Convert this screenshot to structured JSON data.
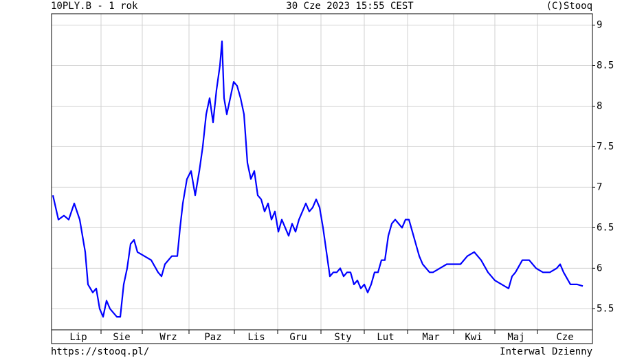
{
  "chart_data": {
    "type": "line",
    "title": "10PLY.B - 1 rok",
    "subtitle": "30 Cze 2023 15:55 CEST",
    "source": "(C)Stooq",
    "footer_left": "https://stooq.pl/",
    "footer_right": "Interwal Dzienny",
    "grid": true,
    "xlim": [
      -2,
      785
    ],
    "ylim": [
      5.24,
      9.14
    ],
    "yticks": [
      5.5,
      6.0,
      6.5,
      7.0,
      7.5,
      8.0,
      8.5,
      9.0
    ],
    "xgrid": [
      70,
      130,
      198,
      264,
      327,
      390,
      453,
      516,
      583,
      643,
      705
    ],
    "xticks": [
      {
        "value": 37,
        "label": "Lip"
      },
      {
        "value": 100,
        "label": "Sie"
      },
      {
        "value": 168,
        "label": "Wrz"
      },
      {
        "value": 233,
        "label": "Paz"
      },
      {
        "value": 296,
        "label": "Lis"
      },
      {
        "value": 357,
        "label": "Gru"
      },
      {
        "value": 422,
        "label": "Sty"
      },
      {
        "value": 484,
        "label": "Lut"
      },
      {
        "value": 550,
        "label": "Mar"
      },
      {
        "value": 612,
        "label": "Kwi"
      },
      {
        "value": 674,
        "label": "Maj"
      },
      {
        "value": 745,
        "label": "Cze"
      }
    ],
    "series": [
      {
        "name": "10PLY.B",
        "color": "#0000ff",
        "x": [
          0,
          8,
          16,
          23,
          31,
          39,
          47,
          51,
          58,
          63,
          68,
          73,
          78,
          83,
          88,
          93,
          98,
          103,
          108,
          113,
          118,
          123,
          133,
          143,
          153,
          158,
          163,
          173,
          181,
          185,
          189,
          195,
          201,
          207,
          213,
          218,
          223,
          228,
          233,
          238,
          243,
          246,
          249,
          253,
          258,
          263,
          268,
          273,
          278,
          283,
          288,
          293,
          298,
          303,
          308,
          313,
          318,
          323,
          328,
          333,
          338,
          343,
          348,
          353,
          358,
          363,
          368,
          373,
          378,
          383,
          388,
          393,
          398,
          403,
          408,
          413,
          418,
          423,
          428,
          433,
          438,
          443,
          448,
          453,
          458,
          463,
          468,
          473,
          478,
          483,
          488,
          493,
          498,
          503,
          508,
          513,
          518,
          523,
          528,
          533,
          538,
          543,
          548,
          553,
          563,
          573,
          583,
          593,
          603,
          613,
          623,
          633,
          643,
          653,
          663,
          668,
          673,
          683,
          693,
          703,
          713,
          723,
          733,
          738,
          743,
          753,
          763,
          771
        ],
        "values": [
          6.9,
          6.6,
          6.65,
          6.6,
          6.8,
          6.6,
          6.2,
          5.8,
          5.7,
          5.75,
          5.5,
          5.4,
          5.6,
          5.5,
          5.45,
          5.4,
          5.4,
          5.8,
          6.0,
          6.3,
          6.35,
          6.2,
          6.15,
          6.1,
          5.95,
          5.9,
          6.05,
          6.15,
          6.15,
          6.5,
          6.8,
          7.1,
          7.2,
          6.9,
          7.2,
          7.5,
          7.9,
          8.1,
          7.8,
          8.2,
          8.5,
          8.8,
          8.1,
          7.9,
          8.1,
          8.3,
          8.25,
          8.1,
          7.9,
          7.3,
          7.1,
          7.2,
          6.9,
          6.85,
          6.7,
          6.8,
          6.6,
          6.7,
          6.45,
          6.6,
          6.5,
          6.4,
          6.55,
          6.45,
          6.6,
          6.7,
          6.8,
          6.7,
          6.75,
          6.85,
          6.75,
          6.5,
          6.2,
          5.9,
          5.95,
          5.95,
          6.0,
          5.9,
          5.95,
          5.95,
          5.8,
          5.85,
          5.75,
          5.8,
          5.7,
          5.8,
          5.95,
          5.95,
          6.1,
          6.1,
          6.4,
          6.55,
          6.6,
          6.55,
          6.5,
          6.6,
          6.6,
          6.45,
          6.3,
          6.15,
          6.05,
          6.0,
          5.95,
          5.95,
          6.0,
          6.05,
          6.05,
          6.05,
          6.15,
          6.2,
          6.1,
          5.95,
          5.85,
          5.8,
          5.75,
          5.9,
          5.95,
          6.1,
          6.1,
          6.0,
          5.95,
          5.95,
          6.0,
          6.05,
          5.95,
          5.8,
          5.8,
          5.78
        ]
      }
    ]
  }
}
